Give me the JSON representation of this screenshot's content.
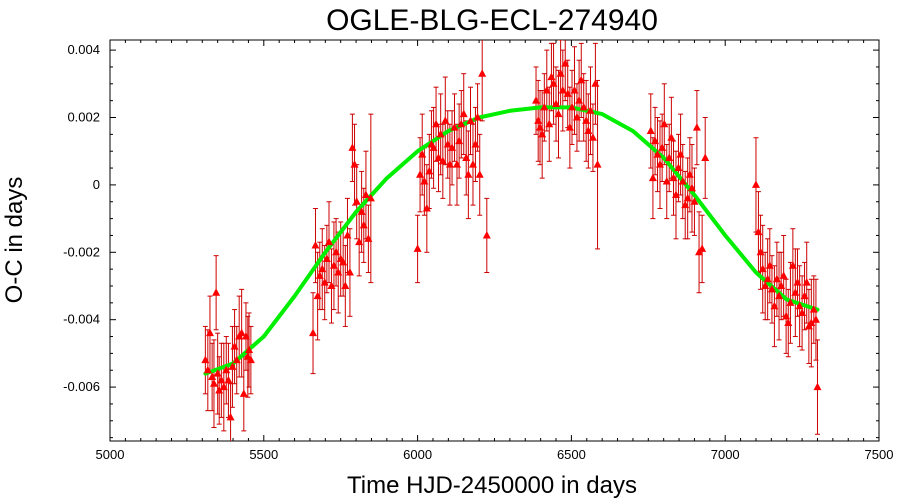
{
  "chart_data": {
    "type": "scatter",
    "title": "OGLE-BLG-ECL-274940",
    "xlabel": "Time HJD-2450000 in days",
    "ylabel": "O-C in days",
    "xlim": [
      5000,
      7500
    ],
    "ylim": [
      -0.0076,
      0.0043
    ],
    "xticks": [
      5000,
      5500,
      6000,
      6500,
      7000,
      7500
    ],
    "xtick_labels": [
      "5000",
      "5500",
      "6000",
      "6500",
      "7000",
      "7500"
    ],
    "yticks": [
      -0.006,
      -0.004,
      -0.002,
      0,
      0.002,
      0.004
    ],
    "ytick_labels": [
      "-0.006",
      "-0.004",
      "-0.002",
      "0",
      "0.002",
      "0.004"
    ],
    "grid": false,
    "legend": "none",
    "colors": {
      "points": "#ff0000",
      "errorbars": "#cc0000",
      "fit": "#00ee00"
    },
    "series": [
      {
        "kind": "points-with-errorbars",
        "x": [
          5310,
          5318,
          5325,
          5332,
          5338,
          5345,
          5350,
          5355,
          5362,
          5370,
          5378,
          5385,
          5392,
          5398,
          5405,
          5412,
          5420,
          5428,
          5435,
          5442,
          5448,
          5452,
          5458,
          5660,
          5668,
          5675,
          5682,
          5690,
          5698,
          5705,
          5712,
          5720,
          5728,
          5735,
          5742,
          5750,
          5758,
          5765,
          5772,
          5780,
          5788,
          5795,
          5802,
          5810,
          5818,
          5825,
          5832,
          5840,
          5848,
          6000,
          6008,
          6015,
          6022,
          6030,
          6038,
          6045,
          6052,
          6060,
          6068,
          6075,
          6082,
          6090,
          6098,
          6105,
          6112,
          6120,
          6128,
          6135,
          6142,
          6150,
          6158,
          6165,
          6172,
          6180,
          6188,
          6195,
          6202,
          6210,
          6225,
          6385,
          6392,
          6398,
          6405,
          6412,
          6420,
          6428,
          6435,
          6442,
          6450,
          6458,
          6465,
          6472,
          6480,
          6488,
          6495,
          6502,
          6510,
          6518,
          6525,
          6532,
          6540,
          6548,
          6555,
          6562,
          6570,
          6578,
          6585,
          6758,
          6765,
          6772,
          6780,
          6788,
          6795,
          6802,
          6810,
          6818,
          6825,
          6832,
          6840,
          6848,
          6855,
          6862,
          6870,
          6878,
          6885,
          6892,
          6900,
          6908,
          6915,
          6925,
          6935,
          7100,
          7108,
          7115,
          7122,
          7130,
          7138,
          7145,
          7152,
          7160,
          7168,
          7175,
          7182,
          7190,
          7198,
          7205,
          7212,
          7220,
          7228,
          7235,
          7242,
          7250,
          7258,
          7265,
          7272,
          7280,
          7288,
          7295,
          7300
        ],
        "y": [
          -0.0052,
          -0.0055,
          -0.0044,
          -0.0057,
          -0.0059,
          -0.0032,
          -0.0056,
          -0.0061,
          -0.0058,
          -0.006,
          -0.0055,
          -0.0058,
          -0.0069,
          -0.0054,
          -0.0048,
          -0.0052,
          -0.0045,
          -0.0044,
          -0.0062,
          -0.0045,
          -0.0051,
          -0.0049,
          -0.0052,
          -0.0044,
          -0.0018,
          -0.0033,
          -0.0027,
          -0.0025,
          -0.0029,
          -0.0022,
          -0.0017,
          -0.003,
          -0.0024,
          -0.002,
          -0.0026,
          -0.0022,
          -0.0023,
          -0.003,
          -0.0015,
          -0.0026,
          0.0011,
          0.0006,
          -0.0005,
          -0.0017,
          -0.0008,
          -0.0012,
          -0.0003,
          -0.0016,
          -0.0004,
          -0.0019,
          0.0003,
          0.0009,
          0.0001,
          -0.0007,
          0.0004,
          0.0012,
          0.0011,
          0.0018,
          0.0008,
          0.0015,
          0.0007,
          0.0019,
          0.0012,
          0.0006,
          0.0011,
          0.0017,
          0.0006,
          0.0013,
          0.0018,
          0.0021,
          0.0008,
          0.0003,
          0.0019,
          0.0006,
          0.0012,
          0.002,
          0.0003,
          0.0033,
          -0.0015,
          0.0025,
          0.0019,
          0.0017,
          0.0015,
          0.0023,
          0.0028,
          0.0018,
          0.0032,
          0.003,
          0.0024,
          0.0021,
          0.0033,
          0.0028,
          0.0036,
          0.0027,
          0.0017,
          0.0023,
          0.0028,
          0.002,
          0.0025,
          0.0031,
          0.0023,
          0.0019,
          0.0016,
          0.0022,
          0.0014,
          0.003,
          0.0006,
          0.0016,
          0.0002,
          0.0013,
          0.0009,
          0.0006,
          0.0011,
          0.0018,
          0.0001,
          0.0008,
          0.0014,
          0.0002,
          -0.0003,
          0.0005,
          0.0009,
          0.0001,
          -0.0006,
          -0.0004,
          0.0003,
          -0.0001,
          -0.0005,
          0.0017,
          -0.002,
          -0.0019,
          0.0008,
          0.0,
          -0.0014,
          -0.002,
          -0.0025,
          -0.003,
          -0.0028,
          -0.0024,
          -0.0031,
          -0.0036,
          -0.0028,
          -0.0033,
          -0.003,
          -0.0027,
          -0.0039,
          -0.0041,
          -0.0035,
          -0.0024,
          -0.0032,
          -0.0029,
          -0.0036,
          -0.0038,
          -0.0033,
          -0.0029,
          -0.0042,
          -0.0041,
          -0.0037,
          -0.004,
          -0.006
        ],
        "err": [
          0.001,
          0.0012,
          0.0011,
          0.001,
          0.0013,
          0.0011,
          0.0012,
          0.001,
          0.0011,
          0.0013,
          0.001,
          0.0011,
          0.001,
          0.0012,
          0.0011,
          0.001,
          0.0012,
          0.0013,
          0.0011,
          0.001,
          0.0012,
          0.0011,
          0.001,
          0.0012,
          0.0011,
          0.0013,
          0.001,
          0.0012,
          0.0011,
          0.001,
          0.0012,
          0.0011,
          0.0013,
          0.001,
          0.0012,
          0.0011,
          0.001,
          0.0012,
          0.0011,
          0.0013,
          0.001,
          0.0012,
          0.0011,
          0.001,
          0.0012,
          0.0011,
          0.0013,
          0.001,
          0.0025,
          0.001,
          0.0011,
          0.0012,
          0.001,
          0.0013,
          0.0011,
          0.001,
          0.0012,
          0.0011,
          0.001,
          0.0012,
          0.0011,
          0.0013,
          0.001,
          0.0012,
          0.0011,
          0.001,
          0.0012,
          0.0011,
          0.001,
          0.0012,
          0.0011,
          0.0013,
          0.001,
          0.0012,
          0.0011,
          0.001,
          0.0012,
          0.0014,
          0.0011,
          0.001,
          0.0012,
          0.0011,
          0.0013,
          0.001,
          0.0012,
          0.0011,
          0.001,
          0.0012,
          0.0011,
          0.0013,
          0.001,
          0.0012,
          0.0011,
          0.001,
          0.0012,
          0.0011,
          0.0013,
          0.001,
          0.0012,
          0.0011,
          0.001,
          0.0012,
          0.0011,
          0.0013,
          0.001,
          0.0012,
          0.0025,
          0.0011,
          0.0012,
          0.001,
          0.0011,
          0.0013,
          0.001,
          0.0012,
          0.0011,
          0.001,
          0.0012,
          0.0011,
          0.0013,
          0.001,
          0.0012,
          0.0011,
          0.001,
          0.0012,
          0.0011,
          0.0013,
          0.001,
          0.0011,
          0.0012,
          0.001,
          0.0012,
          0.0014,
          0.0012,
          0.0011,
          0.0013,
          0.001,
          0.0012,
          0.0011,
          0.001,
          0.0012,
          0.0011,
          0.0013,
          0.001,
          0.0012,
          0.0011,
          0.001,
          0.0012,
          0.0011,
          0.0013,
          0.001,
          0.0012,
          0.0011,
          0.001,
          0.0012,
          0.0011,
          0.0013,
          0.001,
          0.0012,
          0.0014
        ]
      },
      {
        "kind": "fit-curve",
        "x": [
          5310,
          5400,
          5500,
          5600,
          5700,
          5800,
          5900,
          6000,
          6100,
          6200,
          6300,
          6400,
          6500,
          6600,
          6700,
          6800,
          6900,
          7000,
          7100,
          7200,
          7300
        ],
        "y": [
          -0.0056,
          -0.0053,
          -0.0045,
          -0.0033,
          -0.002,
          -0.0008,
          0.0002,
          0.001,
          0.0016,
          0.002,
          0.0022,
          0.0023,
          0.0023,
          0.0021,
          0.0016,
          0.0008,
          -0.0003,
          -0.0015,
          -0.0026,
          -0.0034,
          -0.0037
        ]
      }
    ]
  }
}
